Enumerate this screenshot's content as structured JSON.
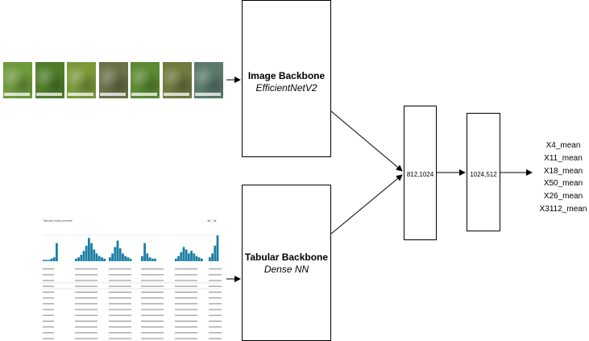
{
  "image_backbone": {
    "title": "Image Backbone",
    "subtitle": "EfficientNetV2"
  },
  "tabular_backbone": {
    "title": "Tabular Backbone",
    "subtitle": "Dense NN"
  },
  "dense_layers": [
    {
      "label": "812,1024"
    },
    {
      "label": "1024,512"
    }
  ],
  "outputs": [
    "X4_mean",
    "X11_mean",
    "X18_mean",
    "X50_mean",
    "X26_mean",
    "X3112_mean"
  ],
  "plant_images": [
    {
      "color": "#6f9a3c"
    },
    {
      "color": "#4f7d2a"
    },
    {
      "color": "#7a9a3a"
    },
    {
      "color": "#6a7048"
    },
    {
      "color": "#5b8a32"
    },
    {
      "color": "#6e7a3e"
    },
    {
      "color": "#5a7a6a"
    }
  ],
  "table_preview": {
    "header": "Tabular data preview",
    "controls": "◀ ▢ ▶"
  },
  "colors": {
    "line": "#000000",
    "histogram": "#1b7fa3"
  }
}
